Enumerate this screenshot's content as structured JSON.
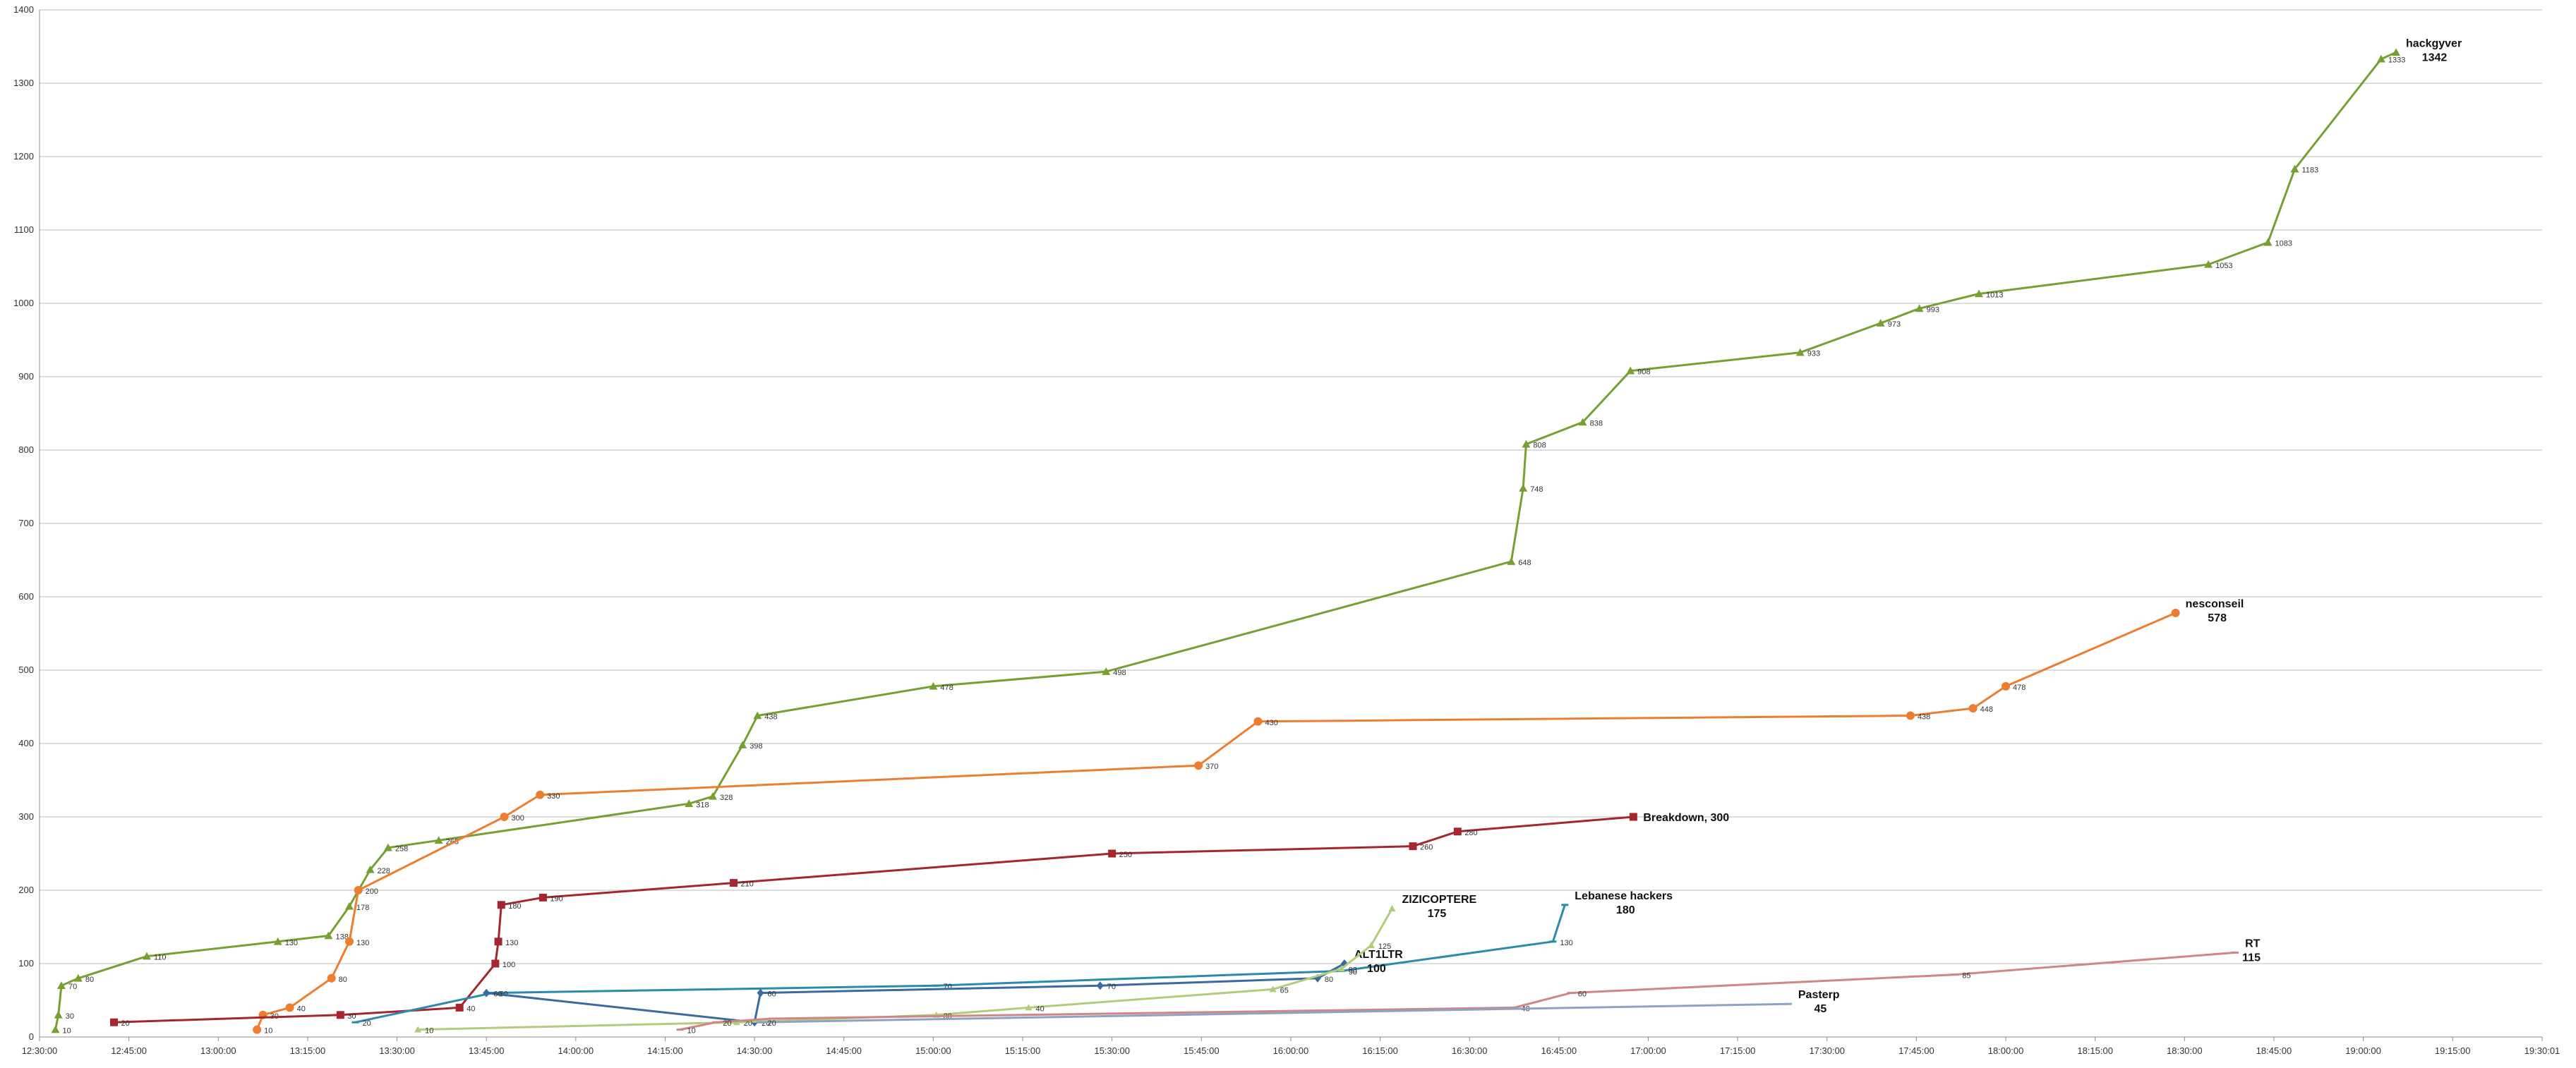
{
  "chart_data": {
    "type": "line",
    "title": "",
    "xlabel": "",
    "ylabel": "",
    "ylim": [
      0,
      1400
    ],
    "xlim": [
      "12:30:00",
      "19:30:01"
    ],
    "grid": "horizontal",
    "legend": "none",
    "y_ticks": [
      0,
      100,
      200,
      300,
      400,
      500,
      600,
      700,
      800,
      900,
      1000,
      1100,
      1200,
      1300,
      1400
    ],
    "x_ticks": [
      "12:30:00",
      "12:45:00",
      "13:00:00",
      "13:15:00",
      "13:30:00",
      "13:45:00",
      "14:00:00",
      "14:15:00",
      "14:30:00",
      "14:45:00",
      "15:00:00",
      "15:15:00",
      "15:30:00",
      "15:45:00",
      "16:00:00",
      "16:15:00",
      "16:30:00",
      "16:45:00",
      "17:00:00",
      "17:15:00",
      "17:30:00",
      "17:45:00",
      "18:00:00",
      "18:15:00",
      "18:30:00",
      "18:45:00",
      "19:00:00",
      "19:15:00",
      "19:30:01"
    ],
    "series": [
      {
        "name": "hackgyver",
        "end_label": [
          "hackgyver",
          "1342"
        ],
        "color": "#77a033",
        "marker": "triangle",
        "points": [
          {
            "t": "12:32:40",
            "v": 10,
            "label": "10"
          },
          {
            "t": "12:33:10",
            "v": 30,
            "label": "30"
          },
          {
            "t": "12:33:40",
            "v": 70,
            "label": "70"
          },
          {
            "t": "12:36:30",
            "v": 80,
            "label": "80"
          },
          {
            "t": "12:48:00",
            "v": 110,
            "label": "110"
          },
          {
            "t": "13:10:00",
            "v": 130,
            "label": "130"
          },
          {
            "t": "13:18:30",
            "v": 138,
            "label": "138"
          },
          {
            "t": "13:22:00",
            "v": 178,
            "label": "178"
          },
          {
            "t": "13:25:30",
            "v": 228,
            "label": "228"
          },
          {
            "t": "13:28:30",
            "v": 258,
            "label": "258"
          },
          {
            "t": "13:37:00",
            "v": 268,
            "label": "268"
          },
          {
            "t": "14:19:00",
            "v": 318,
            "label": "318"
          },
          {
            "t": "14:23:00",
            "v": 328,
            "label": "328"
          },
          {
            "t": "14:28:00",
            "v": 398,
            "label": "398"
          },
          {
            "t": "14:30:30",
            "v": 438,
            "label": "438"
          },
          {
            "t": "15:00:00",
            "v": 478,
            "label": "478"
          },
          {
            "t": "15:29:00",
            "v": 498,
            "label": "498"
          },
          {
            "t": "16:37:00",
            "v": 648,
            "label": "648"
          },
          {
            "t": "16:39:00",
            "v": 748,
            "label": "748"
          },
          {
            "t": "16:39:30",
            "v": 808,
            "label": "808"
          },
          {
            "t": "16:49:00",
            "v": 838,
            "label": "838"
          },
          {
            "t": "16:57:00",
            "v": 908,
            "label": "908"
          },
          {
            "t": "17:25:30",
            "v": 933,
            "label": "933"
          },
          {
            "t": "17:39:00",
            "v": 973,
            "label": "973"
          },
          {
            "t": "17:45:30",
            "v": 993,
            "label": "993"
          },
          {
            "t": "17:55:30",
            "v": 1013,
            "label": "1013"
          },
          {
            "t": "18:34:00",
            "v": 1053,
            "label": "1053"
          },
          {
            "t": "18:44:00",
            "v": 1083,
            "label": "1083"
          },
          {
            "t": "18:48:30",
            "v": 1183,
            "label": "1183"
          },
          {
            "t": "19:03:00",
            "v": 1333,
            "label": "1333"
          },
          {
            "t": "19:05:30",
            "v": 1342,
            "label": ""
          }
        ]
      },
      {
        "name": "nesconseil",
        "end_label": [
          "nesconseil",
          "578"
        ],
        "color": "#ed7d31",
        "marker": "circle",
        "points": [
          {
            "t": "13:06:30",
            "v": 10,
            "label": "10"
          },
          {
            "t": "13:07:30",
            "v": 30,
            "label": "30"
          },
          {
            "t": "13:12:00",
            "v": 40,
            "label": "40"
          },
          {
            "t": "13:19:00",
            "v": 80,
            "label": "80"
          },
          {
            "t": "13:22:00",
            "v": 130,
            "label": "130"
          },
          {
            "t": "13:23:30",
            "v": 200,
            "label": "200"
          },
          {
            "t": "13:48:00",
            "v": 300,
            "label": "300"
          },
          {
            "t": "13:54:00",
            "v": 330,
            "label": "330"
          },
          {
            "t": "15:44:30",
            "v": 370,
            "label": "370"
          },
          {
            "t": "15:54:30",
            "v": 430,
            "label": "430"
          },
          {
            "t": "17:44:00",
            "v": 438,
            "label": "438"
          },
          {
            "t": "17:54:30",
            "v": 448,
            "label": "448"
          },
          {
            "t": "18:00:00",
            "v": 478,
            "label": "478"
          },
          {
            "t": "18:28:30",
            "v": 578,
            "label": ""
          }
        ]
      },
      {
        "name": "Breakdown",
        "end_label": [
          "Breakdown, 300"
        ],
        "color": "#a5272e",
        "marker": "square",
        "points": [
          {
            "t": "12:42:30",
            "v": 20,
            "label": "20"
          },
          {
            "t": "13:20:30",
            "v": 30,
            "label": "30"
          },
          {
            "t": "13:40:30",
            "v": 40,
            "label": "40"
          },
          {
            "t": "13:46:30",
            "v": 100,
            "label": "100"
          },
          {
            "t": "13:47:00",
            "v": 130,
            "label": "130"
          },
          {
            "t": "13:47:30",
            "v": 180,
            "label": "180"
          },
          {
            "t": "13:54:30",
            "v": 190,
            "label": "190"
          },
          {
            "t": "14:26:30",
            "v": 210,
            "label": "210"
          },
          {
            "t": "15:30:00",
            "v": 250,
            "label": "250"
          },
          {
            "t": "16:20:30",
            "v": 260,
            "label": "260"
          },
          {
            "t": "16:28:00",
            "v": 280,
            "label": "280"
          },
          {
            "t": "16:57:30",
            "v": 300,
            "label": ""
          }
        ]
      },
      {
        "name": "Lebanese hackers",
        "end_label": [
          "Lebanese hackers",
          "180"
        ],
        "color": "#2a8bab",
        "marker": "dash",
        "points": [
          {
            "t": "13:23:00",
            "v": 20,
            "label": "20"
          },
          {
            "t": "13:46:00",
            "v": 60,
            "label": "60"
          },
          {
            "t": "15:00:30",
            "v": 70,
            "label": "70"
          },
          {
            "t": "16:08:30",
            "v": 90,
            "label": "90"
          },
          {
            "t": "16:44:00",
            "v": 130,
            "label": "130"
          },
          {
            "t": "16:46:00",
            "v": 180,
            "label": ""
          }
        ]
      },
      {
        "name": "ALT1LTR",
        "end_label": [
          "ALT1LTR",
          "100"
        ],
        "color": "#3a6aa0",
        "marker": "diamond",
        "points": [
          {
            "t": "13:45:00",
            "v": 60,
            "label": "60"
          },
          {
            "t": "14:30:00",
            "v": 20,
            "label": "20"
          },
          {
            "t": "14:31:00",
            "v": 60,
            "label": "60"
          },
          {
            "t": "15:28:00",
            "v": 70,
            "label": "70"
          },
          {
            "t": "16:04:30",
            "v": 80,
            "label": "80"
          },
          {
            "t": "16:09:00",
            "v": 100,
            "label": ""
          }
        ]
      },
      {
        "name": "ZIZICOPTERE",
        "end_label": [
          "ZIZICOPTERE",
          "175"
        ],
        "color": "#b3cc7a",
        "marker": "triangle-small",
        "points": [
          {
            "t": "13:33:30",
            "v": 10,
            "label": "10"
          },
          {
            "t": "14:27:00",
            "v": 20,
            "label": "20"
          },
          {
            "t": "15:00:30",
            "v": 30,
            "label": "30"
          },
          {
            "t": "15:16:00",
            "v": 40,
            "label": "40"
          },
          {
            "t": "15:57:00",
            "v": 65,
            "label": "65"
          },
          {
            "t": "16:08:30",
            "v": 93,
            "label": "93"
          },
          {
            "t": "16:13:30",
            "v": 125,
            "label": "125"
          },
          {
            "t": "16:17:00",
            "v": 175,
            "label": ""
          }
        ]
      },
      {
        "name": "RT",
        "end_label": [
          "RT",
          "115"
        ],
        "color": "#d18685",
        "marker": "dash",
        "points": [
          {
            "t": "14:17:30",
            "v": 10,
            "label": "10"
          },
          {
            "t": "14:23:30",
            "v": 20,
            "label": "20"
          },
          {
            "t": "14:33:00",
            "v": 25,
            "label": ""
          },
          {
            "t": "16:37:30",
            "v": 40,
            "label": "40"
          },
          {
            "t": "16:47:00",
            "v": 60,
            "label": "60"
          },
          {
            "t": "17:51:30",
            "v": 85,
            "label": "85"
          },
          {
            "t": "18:38:30",
            "v": 115,
            "label": ""
          }
        ]
      },
      {
        "name": "Pasterp",
        "end_label": [
          "Pasterp",
          "45"
        ],
        "color": "#8ea2c6",
        "marker": "dash",
        "points": [
          {
            "t": "14:31:00",
            "v": 20,
            "label": "20"
          },
          {
            "t": "17:23:30",
            "v": 45,
            "label": ""
          }
        ]
      }
    ]
  }
}
